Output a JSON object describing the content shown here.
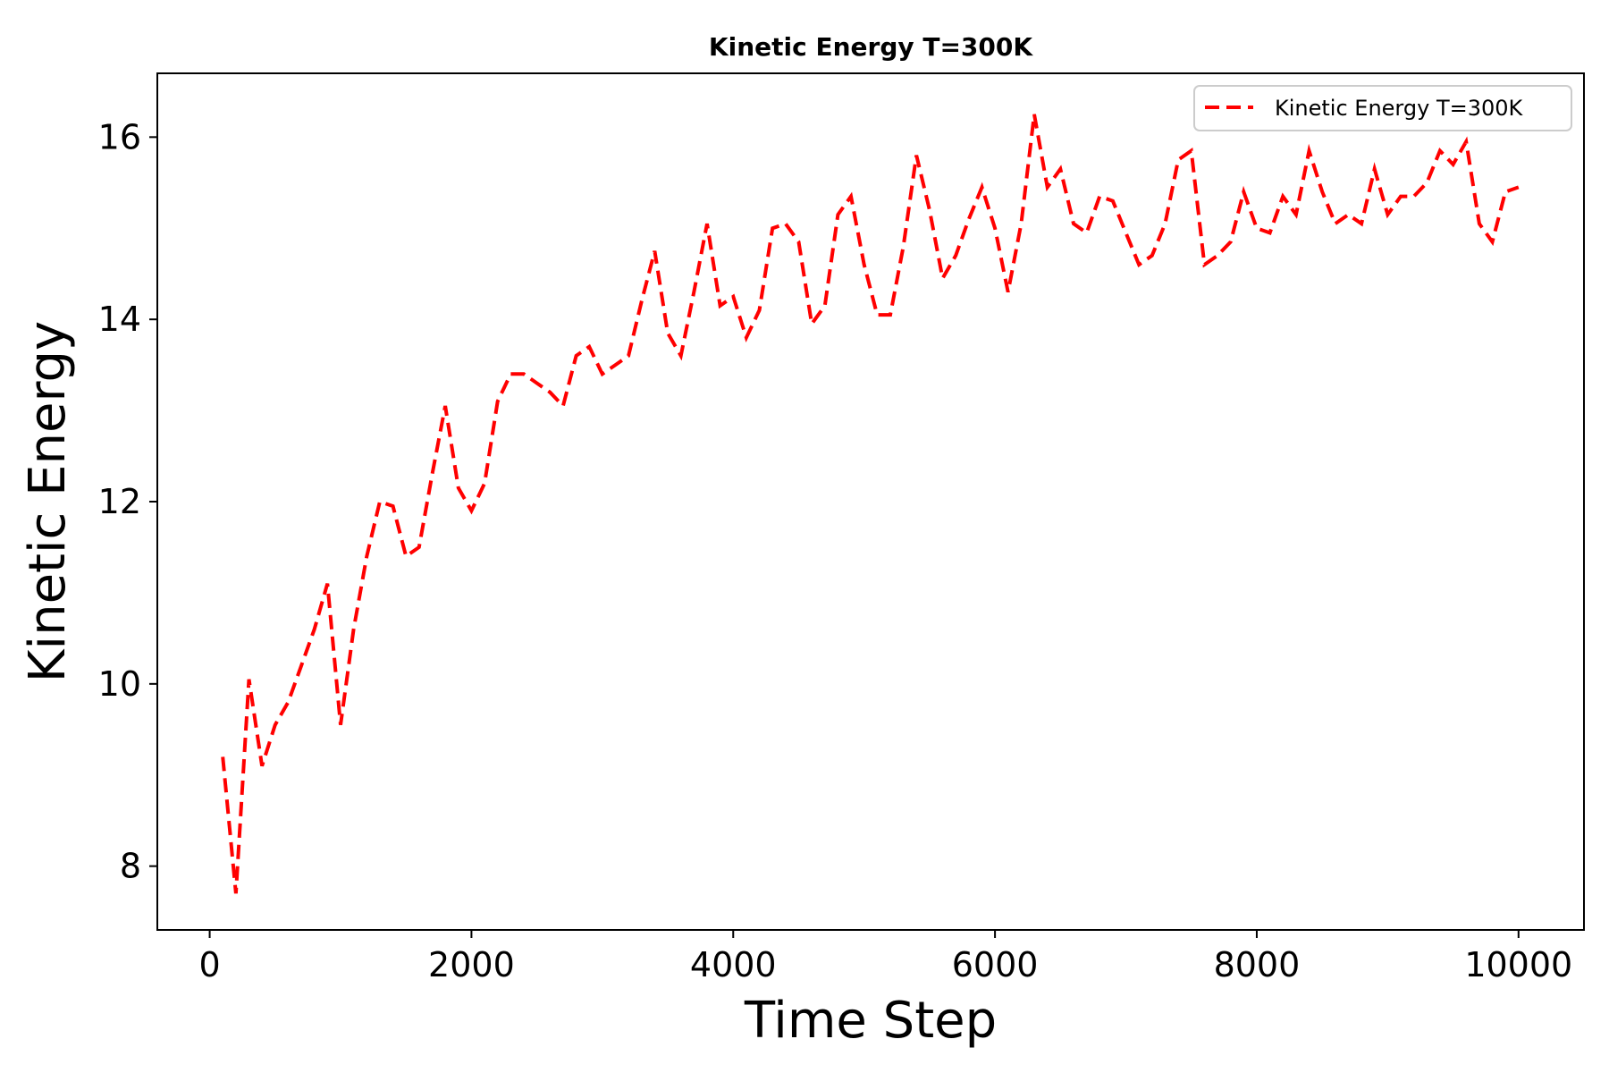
{
  "chart_data": {
    "type": "line",
    "title": "Kinetic Energy T=300K",
    "xlabel": "Time Step",
    "ylabel": "Kinetic Energy",
    "xlim": [
      -400,
      10500
    ],
    "ylim": [
      7.3,
      16.7
    ],
    "xticks": [
      0,
      2000,
      4000,
      6000,
      8000,
      10000
    ],
    "yticks": [
      8,
      10,
      12,
      14,
      16
    ],
    "xtick_labels": [
      "0",
      "2000",
      "4000",
      "6000",
      "8000",
      "10000"
    ],
    "ytick_labels": [
      "8",
      "10",
      "12",
      "14",
      "16"
    ],
    "grid": false,
    "legend_position": "top-right",
    "series": [
      {
        "name": "Kinetic Energy T=300K",
        "color": "#ff0000",
        "line_style": "dashed",
        "x": [
          100,
          200,
          300,
          400,
          500,
          600,
          700,
          800,
          900,
          1000,
          1100,
          1200,
          1300,
          1400,
          1500,
          1600,
          1700,
          1800,
          1900,
          2000,
          2100,
          2200,
          2300,
          2400,
          2500,
          2600,
          2700,
          2800,
          2900,
          3000,
          3100,
          3200,
          3300,
          3400,
          3500,
          3600,
          3700,
          3800,
          3900,
          4000,
          4100,
          4200,
          4300,
          4400,
          4500,
          4600,
          4700,
          4800,
          4900,
          5000,
          5100,
          5200,
          5300,
          5400,
          5500,
          5600,
          5700,
          5800,
          5900,
          6000,
          6100,
          6200,
          6300,
          6400,
          6500,
          6600,
          6700,
          6800,
          6900,
          7000,
          7100,
          7200,
          7300,
          7400,
          7500,
          7600,
          7700,
          7800,
          7900,
          8000,
          8100,
          8200,
          8300,
          8400,
          8500,
          8600,
          8700,
          8800,
          8900,
          9000,
          9100,
          9200,
          9300,
          9400,
          9500,
          9600,
          9700,
          9800,
          9900,
          10000
        ],
        "y": [
          9.2,
          7.7,
          10.05,
          9.1,
          9.55,
          9.8,
          10.2,
          10.6,
          11.1,
          9.55,
          10.6,
          11.4,
          12.0,
          11.95,
          11.4,
          11.5,
          12.3,
          13.05,
          12.15,
          11.9,
          12.2,
          13.1,
          13.4,
          13.4,
          13.3,
          13.2,
          13.05,
          13.6,
          13.7,
          13.4,
          13.5,
          13.6,
          14.2,
          14.75,
          13.85,
          13.6,
          14.3,
          15.05,
          14.15,
          14.25,
          13.8,
          14.1,
          15.0,
          15.05,
          14.85,
          13.95,
          14.15,
          15.15,
          15.35,
          14.6,
          14.05,
          14.05,
          14.8,
          15.8,
          15.2,
          14.45,
          14.7,
          15.1,
          15.45,
          15.0,
          14.3,
          15.05,
          16.25,
          15.45,
          15.65,
          15.05,
          14.95,
          15.35,
          15.3,
          14.95,
          14.6,
          14.7,
          15.05,
          15.75,
          15.85,
          14.6,
          14.7,
          14.85,
          15.4,
          15.0,
          14.95,
          15.35,
          15.15,
          15.85,
          15.4,
          15.05,
          15.15,
          15.05,
          15.65,
          15.15,
          15.35,
          15.35,
          15.5,
          15.85,
          15.7,
          15.95,
          15.05,
          14.85,
          15.4,
          15.45
        ]
      }
    ]
  }
}
